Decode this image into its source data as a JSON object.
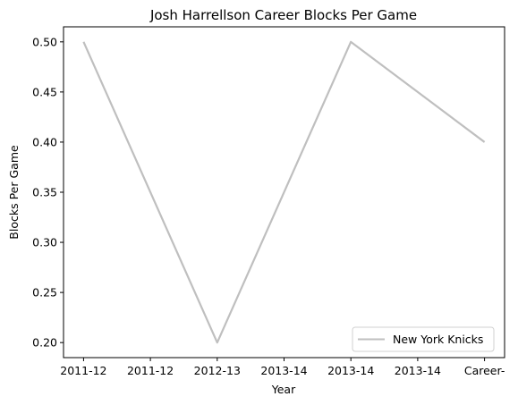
{
  "chart_data": {
    "type": "line",
    "title": "Josh Harrellson Career Blocks Per Game",
    "xlabel": "Year",
    "ylabel": "Blocks Per Game",
    "categories": [
      "2011-12",
      "2011-12",
      "2012-13",
      "2013-14",
      "2013-14",
      "2013-14",
      "Career-"
    ],
    "series": [
      {
        "name": "New York Knicks",
        "color": "#bfbfbf",
        "points": [
          {
            "x": 0,
            "y": 0.5
          },
          {
            "x": 2,
            "y": 0.2
          },
          {
            "x": 4,
            "y": 0.5
          },
          {
            "x": 6,
            "y": 0.4
          }
        ]
      }
    ],
    "ylim": [
      0.185,
      0.515
    ],
    "yticks": [
      "0.20",
      "0.25",
      "0.30",
      "0.35",
      "0.40",
      "0.45",
      "0.50"
    ],
    "ytick_values": [
      0.2,
      0.25,
      0.3,
      0.35,
      0.4,
      0.45,
      0.5
    ],
    "xlim": [
      -0.3,
      6.3
    ],
    "grid": false,
    "legend_position": "lower-right"
  }
}
